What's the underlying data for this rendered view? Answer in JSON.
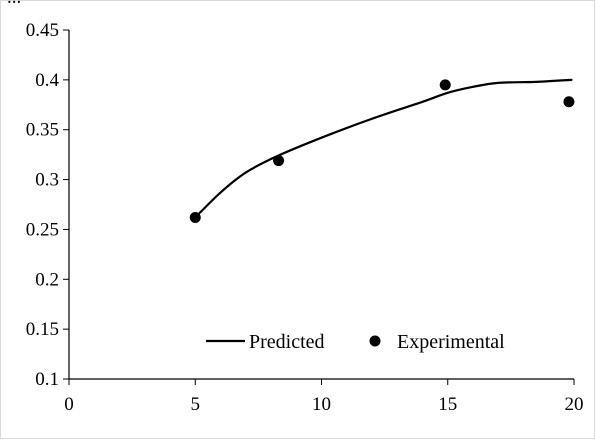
{
  "top_text": "...",
  "chart_data": {
    "type": "line",
    "title": "",
    "xlabel": "",
    "ylabel": "",
    "xlim": [
      0,
      20
    ],
    "ylim": [
      0.1,
      0.45
    ],
    "x_ticks": [
      0,
      5,
      10,
      15,
      20
    ],
    "x_tick_labels": [
      "0",
      "5",
      "10",
      "15",
      "20"
    ],
    "y_ticks": [
      0.1,
      0.15,
      0.2,
      0.25,
      0.3,
      0.35,
      0.4,
      0.45
    ],
    "y_tick_labels": [
      "0.1",
      "0.15",
      "0.2",
      "0.25",
      "0.3",
      "0.35",
      "0.4",
      "0.45"
    ],
    "grid": false,
    "legend_position": "bottom-center",
    "series": [
      {
        "name": "Predicted",
        "kind": "line",
        "color": "#000000",
        "x": [
          5.0,
          6.0,
          7.0,
          8.2,
          10.0,
          12.0,
          14.0,
          15.0,
          16.0,
          17.0,
          18.5,
          19.9
        ],
        "y": [
          0.262,
          0.287,
          0.307,
          0.323,
          0.342,
          0.361,
          0.378,
          0.387,
          0.393,
          0.397,
          0.398,
          0.4
        ]
      },
      {
        "name": "Experimental",
        "kind": "scatter",
        "color": "#000000",
        "x": [
          5.0,
          8.3,
          14.9,
          19.8
        ],
        "y": [
          0.262,
          0.319,
          0.395,
          0.378
        ]
      }
    ]
  }
}
